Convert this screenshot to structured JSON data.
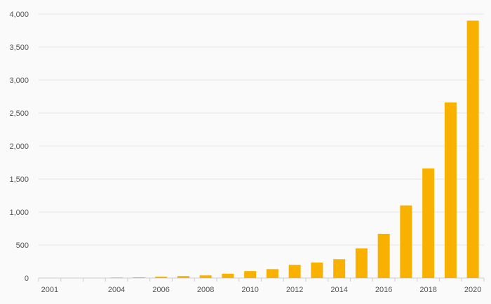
{
  "chart_data": {
    "type": "bar",
    "title": "",
    "xlabel": "",
    "ylabel": "",
    "ylim": [
      0,
      4000
    ],
    "grid": true,
    "y_ticks": [
      0,
      500,
      1000,
      1500,
      2000,
      2500,
      3000,
      3500,
      4000
    ],
    "y_tick_labels": [
      "0",
      "500",
      "1,000",
      "1,500",
      "2,000",
      "2,500",
      "3,000",
      "3,500",
      "4,000"
    ],
    "categories": [
      "2001",
      "2002",
      "2003",
      "2004",
      "2005",
      "2006",
      "2007",
      "2008",
      "2009",
      "2010",
      "2011",
      "2012",
      "2013",
      "2014",
      "2015",
      "2016",
      "2017",
      "2018",
      "2019",
      "2020"
    ],
    "x_tick_labels_shown": [
      "2001",
      "2004",
      "2006",
      "2008",
      "2010",
      "2012",
      "2014",
      "2016",
      "2018",
      "2020"
    ],
    "values": [
      0,
      0,
      0,
      8,
      10,
      20,
      30,
      40,
      65,
      105,
      135,
      200,
      235,
      285,
      450,
      670,
      1100,
      1660,
      2660,
      3900
    ],
    "colors": {
      "bar": "#f9b100",
      "grid": "#e6e6e6",
      "background": "#fafafa"
    }
  }
}
